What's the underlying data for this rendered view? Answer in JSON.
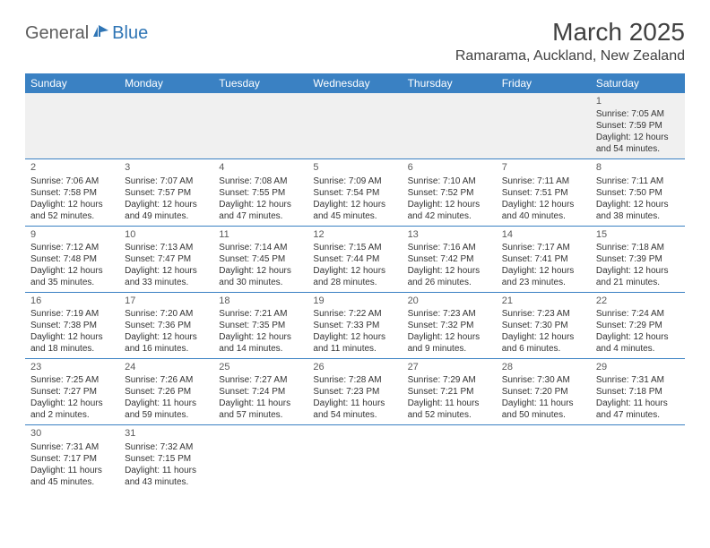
{
  "logo": {
    "general": "General",
    "blue": "Blue"
  },
  "title": "March 2025",
  "location": "Ramarama, Auckland, New Zealand",
  "colors": {
    "header_bg": "#3a81c3",
    "header_text": "#ffffff",
    "cell_border": "#3a81c3",
    "first_row_bg": "#f0f0f0",
    "title_color": "#404040",
    "logo_gray": "#5c5c5c",
    "logo_blue": "#2f75b5"
  },
  "typography": {
    "title_fontsize": 28,
    "location_fontsize": 16,
    "header_fontsize": 12,
    "cell_fontsize": 10,
    "daynum_fontsize": 11
  },
  "weekdays": [
    "Sunday",
    "Monday",
    "Tuesday",
    "Wednesday",
    "Thursday",
    "Friday",
    "Saturday"
  ],
  "weeks": [
    [
      null,
      null,
      null,
      null,
      null,
      null,
      {
        "d": "1",
        "sr": "Sunrise: 7:05 AM",
        "ss": "Sunset: 7:59 PM",
        "dl1": "Daylight: 12 hours",
        "dl2": "and 54 minutes."
      }
    ],
    [
      {
        "d": "2",
        "sr": "Sunrise: 7:06 AM",
        "ss": "Sunset: 7:58 PM",
        "dl1": "Daylight: 12 hours",
        "dl2": "and 52 minutes."
      },
      {
        "d": "3",
        "sr": "Sunrise: 7:07 AM",
        "ss": "Sunset: 7:57 PM",
        "dl1": "Daylight: 12 hours",
        "dl2": "and 49 minutes."
      },
      {
        "d": "4",
        "sr": "Sunrise: 7:08 AM",
        "ss": "Sunset: 7:55 PM",
        "dl1": "Daylight: 12 hours",
        "dl2": "and 47 minutes."
      },
      {
        "d": "5",
        "sr": "Sunrise: 7:09 AM",
        "ss": "Sunset: 7:54 PM",
        "dl1": "Daylight: 12 hours",
        "dl2": "and 45 minutes."
      },
      {
        "d": "6",
        "sr": "Sunrise: 7:10 AM",
        "ss": "Sunset: 7:52 PM",
        "dl1": "Daylight: 12 hours",
        "dl2": "and 42 minutes."
      },
      {
        "d": "7",
        "sr": "Sunrise: 7:11 AM",
        "ss": "Sunset: 7:51 PM",
        "dl1": "Daylight: 12 hours",
        "dl2": "and 40 minutes."
      },
      {
        "d": "8",
        "sr": "Sunrise: 7:11 AM",
        "ss": "Sunset: 7:50 PM",
        "dl1": "Daylight: 12 hours",
        "dl2": "and 38 minutes."
      }
    ],
    [
      {
        "d": "9",
        "sr": "Sunrise: 7:12 AM",
        "ss": "Sunset: 7:48 PM",
        "dl1": "Daylight: 12 hours",
        "dl2": "and 35 minutes."
      },
      {
        "d": "10",
        "sr": "Sunrise: 7:13 AM",
        "ss": "Sunset: 7:47 PM",
        "dl1": "Daylight: 12 hours",
        "dl2": "and 33 minutes."
      },
      {
        "d": "11",
        "sr": "Sunrise: 7:14 AM",
        "ss": "Sunset: 7:45 PM",
        "dl1": "Daylight: 12 hours",
        "dl2": "and 30 minutes."
      },
      {
        "d": "12",
        "sr": "Sunrise: 7:15 AM",
        "ss": "Sunset: 7:44 PM",
        "dl1": "Daylight: 12 hours",
        "dl2": "and 28 minutes."
      },
      {
        "d": "13",
        "sr": "Sunrise: 7:16 AM",
        "ss": "Sunset: 7:42 PM",
        "dl1": "Daylight: 12 hours",
        "dl2": "and 26 minutes."
      },
      {
        "d": "14",
        "sr": "Sunrise: 7:17 AM",
        "ss": "Sunset: 7:41 PM",
        "dl1": "Daylight: 12 hours",
        "dl2": "and 23 minutes."
      },
      {
        "d": "15",
        "sr": "Sunrise: 7:18 AM",
        "ss": "Sunset: 7:39 PM",
        "dl1": "Daylight: 12 hours",
        "dl2": "and 21 minutes."
      }
    ],
    [
      {
        "d": "16",
        "sr": "Sunrise: 7:19 AM",
        "ss": "Sunset: 7:38 PM",
        "dl1": "Daylight: 12 hours",
        "dl2": "and 18 minutes."
      },
      {
        "d": "17",
        "sr": "Sunrise: 7:20 AM",
        "ss": "Sunset: 7:36 PM",
        "dl1": "Daylight: 12 hours",
        "dl2": "and 16 minutes."
      },
      {
        "d": "18",
        "sr": "Sunrise: 7:21 AM",
        "ss": "Sunset: 7:35 PM",
        "dl1": "Daylight: 12 hours",
        "dl2": "and 14 minutes."
      },
      {
        "d": "19",
        "sr": "Sunrise: 7:22 AM",
        "ss": "Sunset: 7:33 PM",
        "dl1": "Daylight: 12 hours",
        "dl2": "and 11 minutes."
      },
      {
        "d": "20",
        "sr": "Sunrise: 7:23 AM",
        "ss": "Sunset: 7:32 PM",
        "dl1": "Daylight: 12 hours",
        "dl2": "and 9 minutes."
      },
      {
        "d": "21",
        "sr": "Sunrise: 7:23 AM",
        "ss": "Sunset: 7:30 PM",
        "dl1": "Daylight: 12 hours",
        "dl2": "and 6 minutes."
      },
      {
        "d": "22",
        "sr": "Sunrise: 7:24 AM",
        "ss": "Sunset: 7:29 PM",
        "dl1": "Daylight: 12 hours",
        "dl2": "and 4 minutes."
      }
    ],
    [
      {
        "d": "23",
        "sr": "Sunrise: 7:25 AM",
        "ss": "Sunset: 7:27 PM",
        "dl1": "Daylight: 12 hours",
        "dl2": "and 2 minutes."
      },
      {
        "d": "24",
        "sr": "Sunrise: 7:26 AM",
        "ss": "Sunset: 7:26 PM",
        "dl1": "Daylight: 11 hours",
        "dl2": "and 59 minutes."
      },
      {
        "d": "25",
        "sr": "Sunrise: 7:27 AM",
        "ss": "Sunset: 7:24 PM",
        "dl1": "Daylight: 11 hours",
        "dl2": "and 57 minutes."
      },
      {
        "d": "26",
        "sr": "Sunrise: 7:28 AM",
        "ss": "Sunset: 7:23 PM",
        "dl1": "Daylight: 11 hours",
        "dl2": "and 54 minutes."
      },
      {
        "d": "27",
        "sr": "Sunrise: 7:29 AM",
        "ss": "Sunset: 7:21 PM",
        "dl1": "Daylight: 11 hours",
        "dl2": "and 52 minutes."
      },
      {
        "d": "28",
        "sr": "Sunrise: 7:30 AM",
        "ss": "Sunset: 7:20 PM",
        "dl1": "Daylight: 11 hours",
        "dl2": "and 50 minutes."
      },
      {
        "d": "29",
        "sr": "Sunrise: 7:31 AM",
        "ss": "Sunset: 7:18 PM",
        "dl1": "Daylight: 11 hours",
        "dl2": "and 47 minutes."
      }
    ],
    [
      {
        "d": "30",
        "sr": "Sunrise: 7:31 AM",
        "ss": "Sunset: 7:17 PM",
        "dl1": "Daylight: 11 hours",
        "dl2": "and 45 minutes."
      },
      {
        "d": "31",
        "sr": "Sunrise: 7:32 AM",
        "ss": "Sunset: 7:15 PM",
        "dl1": "Daylight: 11 hours",
        "dl2": "and 43 minutes."
      },
      null,
      null,
      null,
      null,
      null
    ]
  ]
}
